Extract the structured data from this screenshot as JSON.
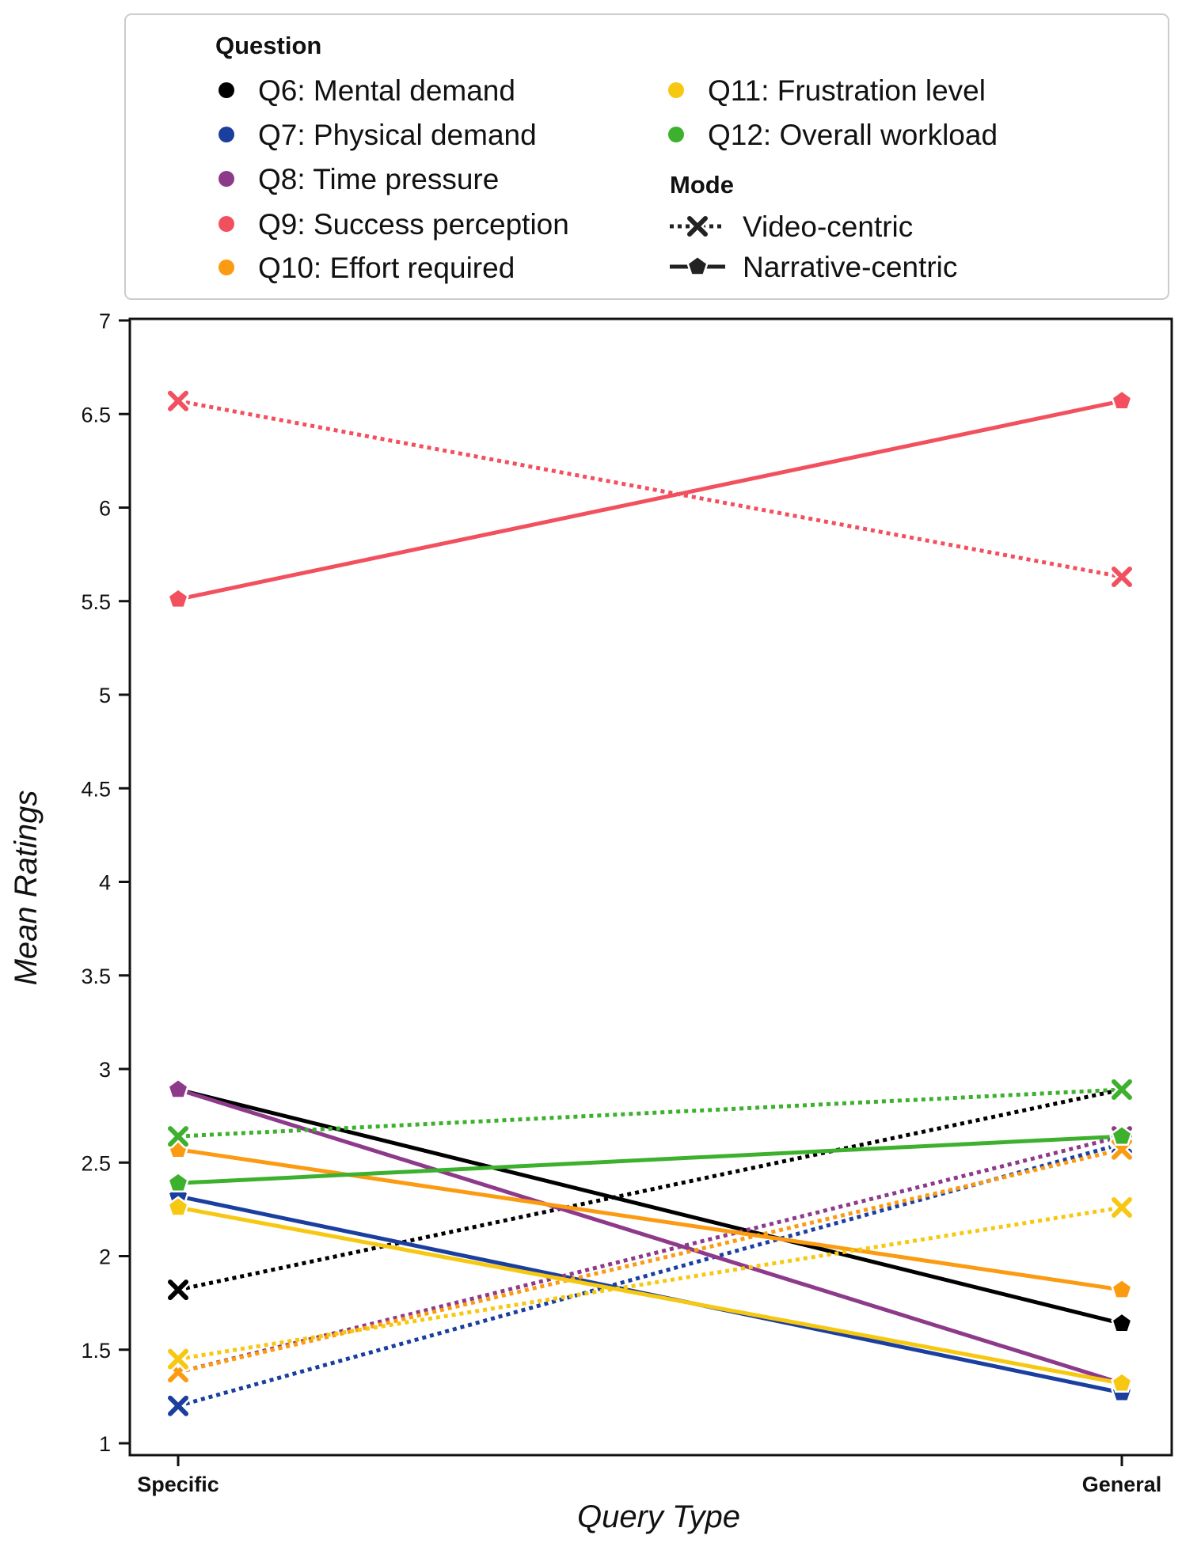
{
  "legend": {
    "question_title": "Question",
    "mode_title": "Mode",
    "questions": [
      {
        "label": "Q6: Mental demand",
        "color": "#000000"
      },
      {
        "label": "Q7: Physical demand",
        "color": "#1a3f9e"
      },
      {
        "label": "Q8: Time pressure",
        "color": "#8e3a8a"
      },
      {
        "label": "Q9: Success perception",
        "color": "#f2505e"
      },
      {
        "label": "Q10: Effort required",
        "color": "#fb9b12"
      },
      {
        "label": "Q11: Frustration level",
        "color": "#f7c812"
      },
      {
        "label": "Q12: Overall workload",
        "color": "#3db12e"
      }
    ],
    "modes": [
      {
        "label": "Video-centric",
        "line": "dotted",
        "marker": "x"
      },
      {
        "label": "Narrative-centric",
        "line": "solid",
        "marker": "pentagon"
      }
    ]
  },
  "chart_data": {
    "type": "line",
    "title": "",
    "xlabel": "Query Type",
    "ylabel": "Mean Ratings",
    "categories": [
      "Specific",
      "General"
    ],
    "ylim": [
      1,
      7
    ],
    "yticks": [
      "1",
      "1.5",
      "2",
      "2.5",
      "3",
      "3.5",
      "4",
      "4.5",
      "5",
      "5.5",
      "6",
      "6.5",
      "7"
    ],
    "grid": false,
    "legend_position": "top",
    "series": [
      {
        "name": "Q6: Mental demand",
        "mode": "Video-centric",
        "color": "#000000",
        "values": [
          1.82,
          2.89
        ]
      },
      {
        "name": "Q6: Mental demand",
        "mode": "Narrative-centric",
        "color": "#000000",
        "values": [
          2.89,
          1.64
        ]
      },
      {
        "name": "Q7: Physical demand",
        "mode": "Video-centric",
        "color": "#1a3f9e",
        "values": [
          1.2,
          2.6
        ]
      },
      {
        "name": "Q7: Physical demand",
        "mode": "Narrative-centric",
        "color": "#1a3f9e",
        "values": [
          2.32,
          1.27
        ]
      },
      {
        "name": "Q8: Time pressure",
        "mode": "Video-centric",
        "color": "#8e3a8a",
        "values": [
          1.38,
          2.64
        ]
      },
      {
        "name": "Q8: Time pressure",
        "mode": "Narrative-centric",
        "color": "#8e3a8a",
        "values": [
          2.89,
          1.32
        ]
      },
      {
        "name": "Q9: Success perception",
        "mode": "Video-centric",
        "color": "#f2505e",
        "values": [
          6.57,
          5.63
        ]
      },
      {
        "name": "Q9: Success perception",
        "mode": "Narrative-centric",
        "color": "#f2505e",
        "values": [
          5.51,
          6.57
        ]
      },
      {
        "name": "Q10: Effort required",
        "mode": "Video-centric",
        "color": "#fb9b12",
        "values": [
          1.38,
          2.57
        ]
      },
      {
        "name": "Q10: Effort required",
        "mode": "Narrative-centric",
        "color": "#fb9b12",
        "values": [
          2.57,
          1.82
        ]
      },
      {
        "name": "Q11: Frustration level",
        "mode": "Video-centric",
        "color": "#f7c812",
        "values": [
          1.45,
          2.26
        ]
      },
      {
        "name": "Q11: Frustration level",
        "mode": "Narrative-centric",
        "color": "#f7c812",
        "values": [
          2.26,
          1.32
        ]
      },
      {
        "name": "Q12: Overall workload",
        "mode": "Video-centric",
        "color": "#3db12e",
        "values": [
          2.64,
          2.89
        ]
      },
      {
        "name": "Q12: Overall workload",
        "mode": "Narrative-centric",
        "color": "#3db12e",
        "values": [
          2.39,
          2.64
        ]
      }
    ]
  }
}
